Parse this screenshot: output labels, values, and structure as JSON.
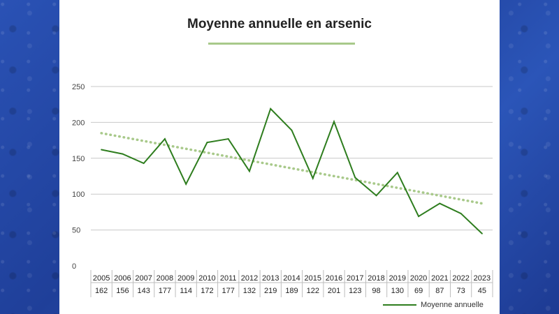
{
  "chart_data": {
    "type": "line",
    "title": "Moyenne annuelle en arsenic",
    "categories": [
      "2005",
      "2006",
      "2007",
      "2008",
      "2009",
      "2010",
      "2011",
      "2012",
      "2013",
      "2014",
      "2015",
      "2016",
      "2017",
      "2018",
      "2019",
      "2020",
      "2021",
      "2022",
      "2023"
    ],
    "series": [
      {
        "name": "Moyenne annuelle",
        "values": [
          162,
          156,
          143,
          177,
          114,
          172,
          177,
          132,
          219,
          189,
          122,
          201,
          123,
          98,
          130,
          69,
          87,
          73,
          45
        ],
        "color": "#2e7d1e"
      }
    ],
    "trendline": {
      "style": "dotted",
      "color": "#a8c98a",
      "start_value": 185,
      "end_value": 87
    },
    "yticks": [
      "0",
      "50",
      "100",
      "150",
      "200",
      "250"
    ],
    "ylim": [
      0,
      250
    ],
    "grid": true,
    "legend": "bottom-right"
  }
}
